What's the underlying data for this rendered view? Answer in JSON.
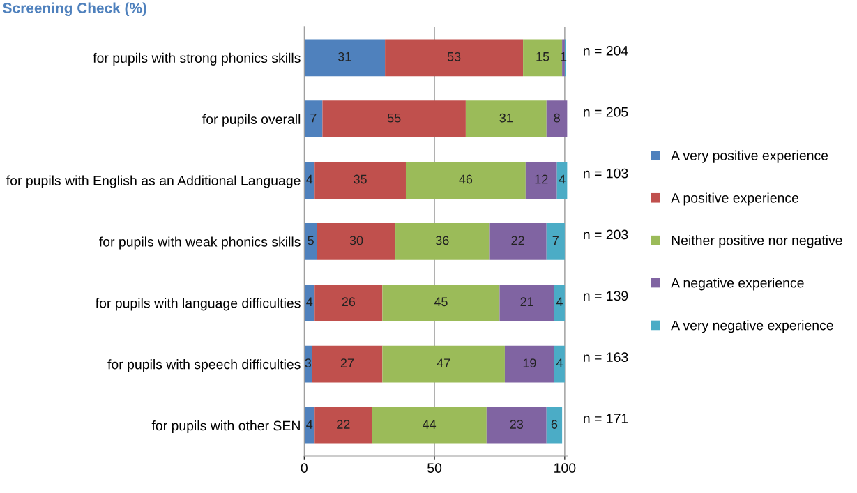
{
  "chart_data": {
    "type": "bar",
    "orientation": "horizontal",
    "stacked": true,
    "title": "Screening Check (%)",
    "categories": [
      "for pupils with strong phonics skills",
      "for pupils overall",
      "for pupils with English as an Additional Language",
      "for pupils with weak phonics skills",
      "for pupils with language difficulties",
      "for pupils with speech difficulties",
      "for pupils with other SEN"
    ],
    "series": [
      {
        "name": "A very positive experience",
        "color": "#4f81bd",
        "values": [
          31,
          7,
          4,
          5,
          4,
          3,
          4
        ],
        "value_labels": [
          "31",
          "7",
          "4",
          "5",
          "4",
          "3",
          "4"
        ]
      },
      {
        "name": "A positive experience",
        "color": "#c0504d",
        "values": [
          53,
          55,
          35,
          30,
          26,
          27,
          22
        ],
        "value_labels": [
          "53",
          "55",
          "35",
          "30",
          "26",
          "27",
          "22"
        ]
      },
      {
        "name": "Neither positive nor negative",
        "color": "#9bbb59",
        "values": [
          15,
          31,
          46,
          36,
          45,
          47,
          44
        ],
        "value_labels": [
          "15",
          "31",
          "46",
          "36",
          "45",
          "47",
          "44"
        ]
      },
      {
        "name": "A negative experience",
        "color": "#8064a2",
        "values": [
          1,
          8,
          12,
          22,
          21,
          19,
          23
        ],
        "value_labels": [
          "1",
          "8",
          "12",
          "22",
          "21",
          "19",
          "23"
        ]
      },
      {
        "name": "A very negative experience",
        "color": "#4bacc6",
        "values": [
          0.5,
          null,
          4,
          7,
          4,
          4,
          6
        ],
        "value_labels": [
          null,
          null,
          "4",
          "7",
          "4",
          "4",
          "6"
        ]
      }
    ],
    "xlim": [
      0,
      101
    ],
    "xticks": [
      0,
      50,
      100
    ],
    "grid": "x",
    "legend": "right",
    "annotations": [
      "n = 204",
      "n = 205",
      "n = 103",
      "n = 203",
      "n = 139",
      "n = 163",
      "n = 171"
    ]
  }
}
